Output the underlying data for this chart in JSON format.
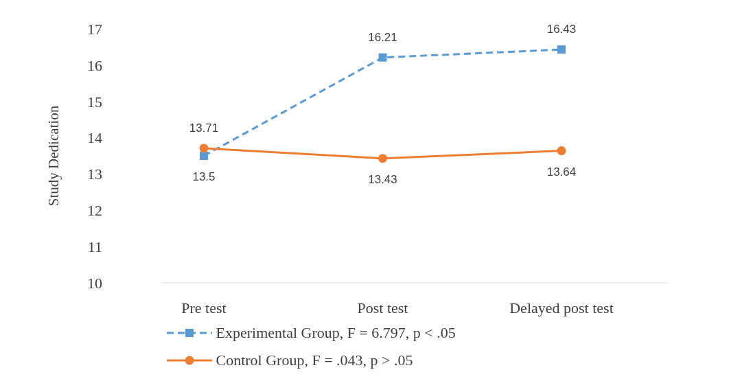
{
  "chart_data": {
    "type": "line",
    "ylabel": "Study Dedication",
    "categories": [
      "Pre test",
      "Post test",
      "Delayed post test"
    ],
    "series": [
      {
        "name": "Experimental Group, F = 6.797, p < .05",
        "color": "#5b9bd5",
        "values": [
          13.5,
          16.21,
          16.43
        ],
        "marker": "square",
        "line_style": "dashed"
      },
      {
        "name": "Control Group, F = .043, p > .05",
        "color": "#ed7d31",
        "values": [
          13.71,
          13.43,
          13.64
        ],
        "marker": "circle",
        "line_style": "solid"
      }
    ],
    "ylim": [
      10,
      17
    ],
    "yticks": [
      10,
      11,
      12,
      13,
      14,
      15,
      16,
      17
    ],
    "grid": false,
    "legend": "bottom",
    "data_labels": true
  }
}
